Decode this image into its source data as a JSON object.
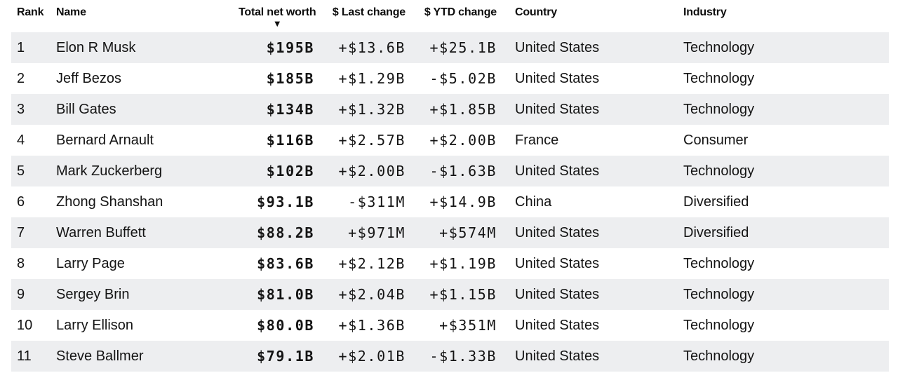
{
  "table": {
    "columns": [
      {
        "key": "rank",
        "label": "Rank"
      },
      {
        "key": "name",
        "label": "Name"
      },
      {
        "key": "net_worth",
        "label": "Total net worth",
        "sorted": "desc"
      },
      {
        "key": "last_change",
        "label": "$ Last change"
      },
      {
        "key": "ytd_change",
        "label": "$ YTD change"
      },
      {
        "key": "country",
        "label": "Country"
      },
      {
        "key": "industry",
        "label": "Industry"
      }
    ],
    "rows": [
      {
        "rank": "1",
        "name": "Elon R Musk",
        "net_worth": "$195B",
        "last_change": "+$13.6B",
        "last_change_dir": "pos",
        "ytd_change": "+$25.1B",
        "ytd_change_dir": "pos",
        "country": "United States",
        "industry": "Technology"
      },
      {
        "rank": "2",
        "name": "Jeff Bezos",
        "net_worth": "$185B",
        "last_change": "+$1.29B",
        "last_change_dir": "pos",
        "ytd_change": "-$5.02B",
        "ytd_change_dir": "neg",
        "country": "United States",
        "industry": "Technology"
      },
      {
        "rank": "3",
        "name": "Bill Gates",
        "net_worth": "$134B",
        "last_change": "+$1.32B",
        "last_change_dir": "pos",
        "ytd_change": "+$1.85B",
        "ytd_change_dir": "pos",
        "country": "United States",
        "industry": "Technology"
      },
      {
        "rank": "4",
        "name": "Bernard Arnault",
        "net_worth": "$116B",
        "last_change": "+$2.57B",
        "last_change_dir": "pos",
        "ytd_change": "+$2.00B",
        "ytd_change_dir": "pos",
        "country": "France",
        "industry": "Consumer"
      },
      {
        "rank": "5",
        "name": "Mark Zuckerberg",
        "net_worth": "$102B",
        "last_change": "+$2.00B",
        "last_change_dir": "pos",
        "ytd_change": "-$1.63B",
        "ytd_change_dir": "neg",
        "country": "United States",
        "industry": "Technology"
      },
      {
        "rank": "6",
        "name": "Zhong Shanshan",
        "net_worth": "$93.1B",
        "last_change": "-$311M",
        "last_change_dir": "neg",
        "ytd_change": "+$14.9B",
        "ytd_change_dir": "pos",
        "country": "China",
        "industry": "Diversified"
      },
      {
        "rank": "7",
        "name": "Warren Buffett",
        "net_worth": "$88.2B",
        "last_change": "+$971M",
        "last_change_dir": "pos",
        "ytd_change": "+$574M",
        "ytd_change_dir": "pos",
        "country": "United States",
        "industry": "Diversified"
      },
      {
        "rank": "8",
        "name": "Larry Page",
        "net_worth": "$83.6B",
        "last_change": "+$2.12B",
        "last_change_dir": "pos",
        "ytd_change": "+$1.19B",
        "ytd_change_dir": "pos",
        "country": "United States",
        "industry": "Technology"
      },
      {
        "rank": "9",
        "name": "Sergey Brin",
        "net_worth": "$81.0B",
        "last_change": "+$2.04B",
        "last_change_dir": "pos",
        "ytd_change": "+$1.15B",
        "ytd_change_dir": "pos",
        "country": "United States",
        "industry": "Technology"
      },
      {
        "rank": "10",
        "name": "Larry Ellison",
        "net_worth": "$80.0B",
        "last_change": "+$1.36B",
        "last_change_dir": "pos",
        "ytd_change": "+$351M",
        "ytd_change_dir": "pos",
        "country": "United States",
        "industry": "Technology"
      },
      {
        "rank": "11",
        "name": "Steve Ballmer",
        "net_worth": "$79.1B",
        "last_change": "+$2.01B",
        "last_change_dir": "pos",
        "ytd_change": "-$1.33B",
        "ytd_change_dir": "neg",
        "country": "United States",
        "industry": "Technology"
      }
    ]
  },
  "icons": {
    "sort_desc": "▼"
  },
  "colors": {
    "positive": "#17996d",
    "negative": "#cb123e",
    "stripe": "#edeef0"
  }
}
